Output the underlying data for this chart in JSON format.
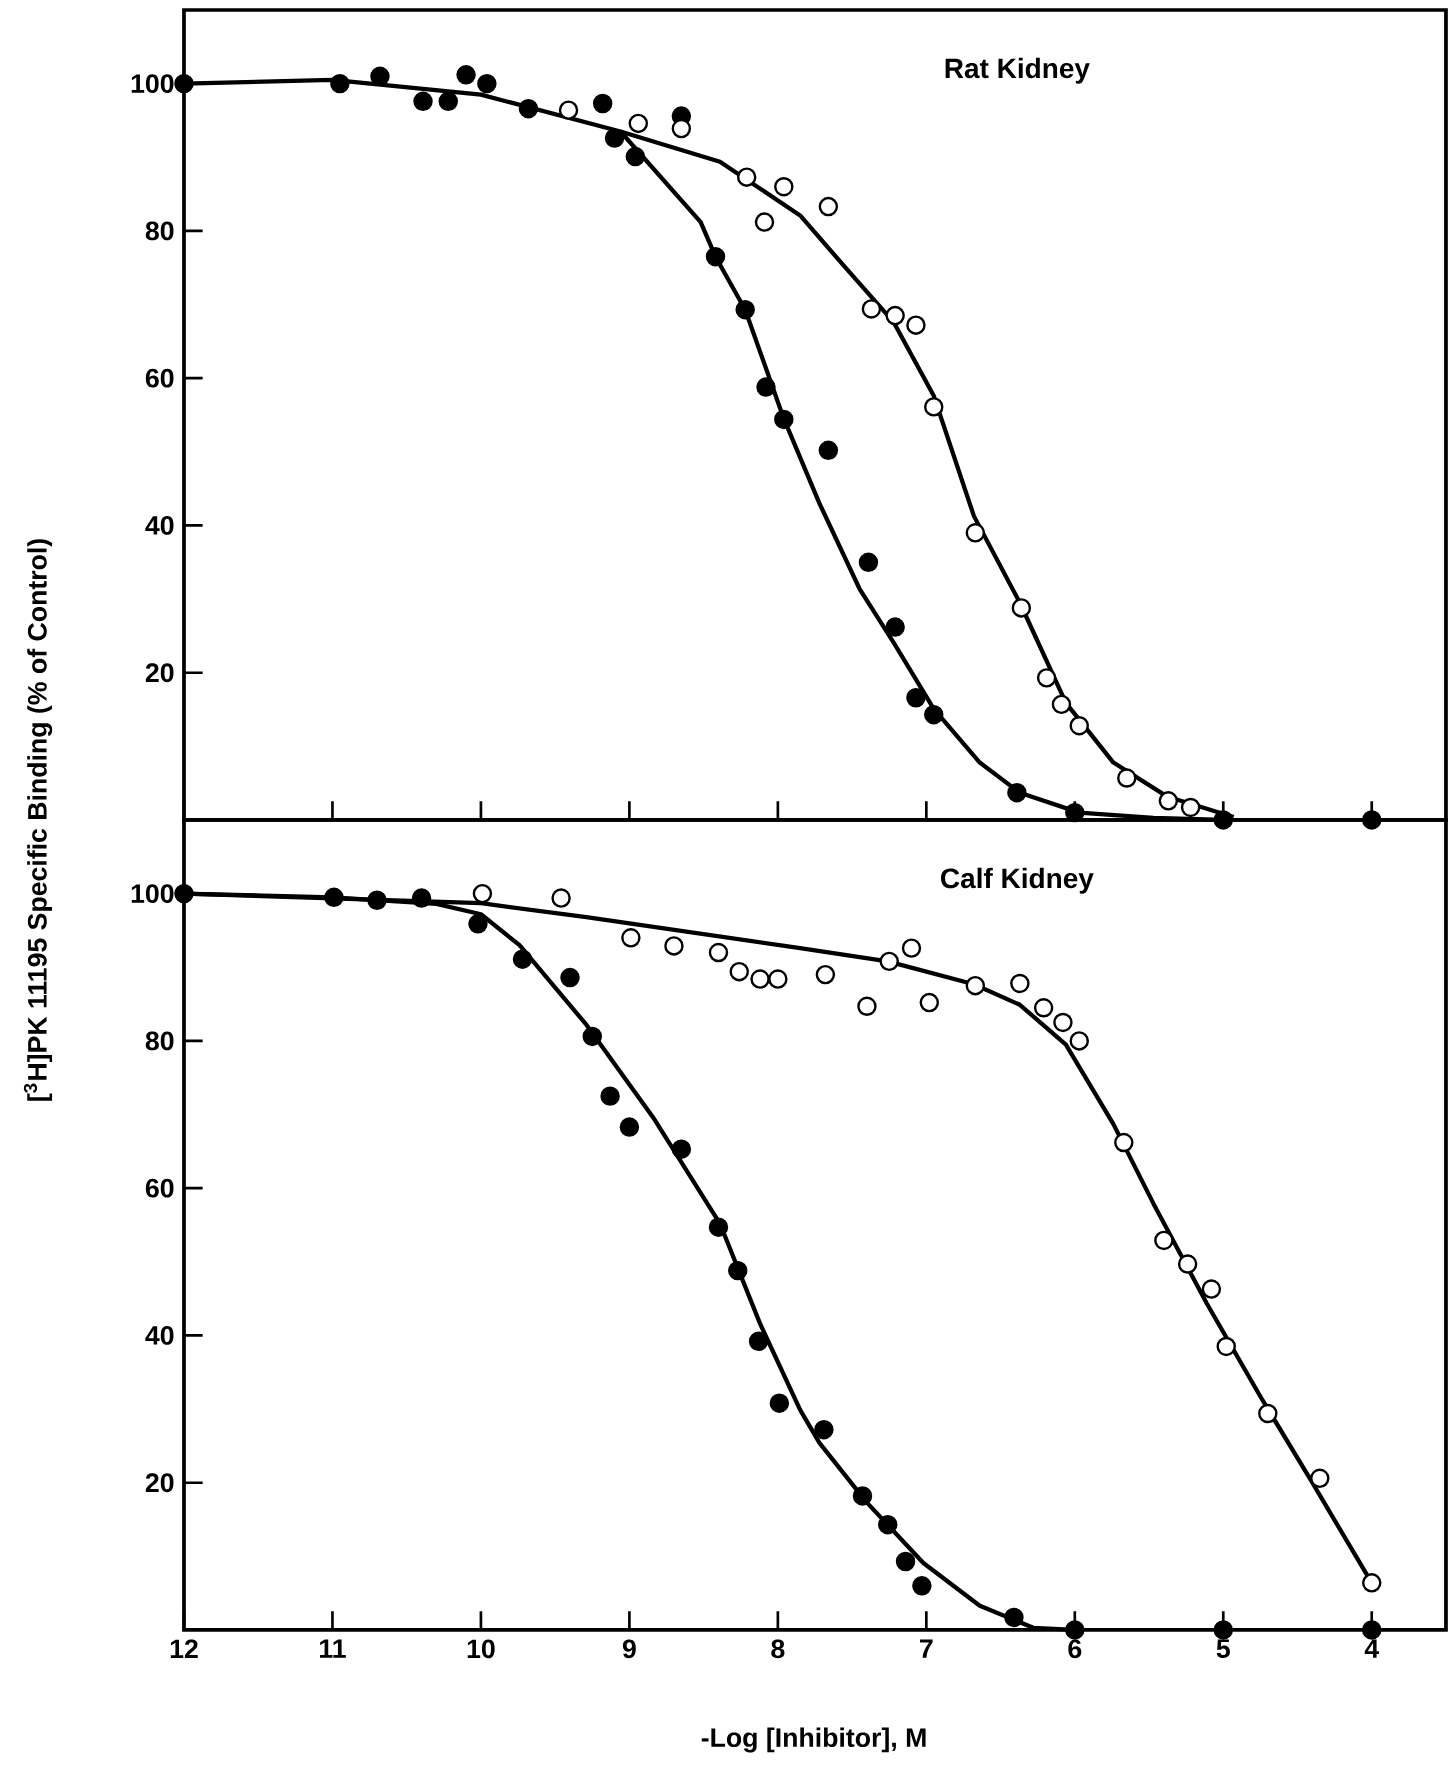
{
  "chart_data": [
    {
      "type": "scatter",
      "title": "Rat Kidney",
      "ylabel": "[$^{3}$H]PK 11195  Specific Binding (% of Control)",
      "tick_labels": "y",
      "xlim": [
        12,
        3.5
      ],
      "xticks": [
        {
          "value": 12,
          "label": null
        },
        {
          "value": 11,
          "label": null
        },
        {
          "value": 10,
          "label": null
        },
        {
          "value": 9,
          "label": null
        },
        {
          "value": 8,
          "label": null
        },
        {
          "value": 7,
          "label": null
        },
        {
          "value": 6,
          "label": null
        },
        {
          "value": 5,
          "label": null
        },
        {
          "value": 4,
          "label": null
        }
      ],
      "ylim": [
        0,
        110
      ],
      "yticks": [
        20,
        40,
        60,
        80,
        100
      ],
      "series": [
        {
          "color": "#000000",
          "marker": "circle",
          "x": [
            12,
            10.95,
            10.68,
            10.39,
            10.22,
            10.1,
            9.96,
            9.68,
            9.18,
            9.1,
            8.96,
            8.65,
            8.42,
            8.22,
            8.08,
            7.96,
            7.66,
            7.39,
            7.21,
            7.07,
            6.95,
            6.39,
            6,
            5,
            4
          ],
          "values": [
            100,
            100,
            101,
            97.6,
            97.6,
            101.2,
            100,
            96.6,
            97.3,
            92.6,
            90.1,
            95.6,
            76.5,
            69.3,
            58.8,
            54.4,
            50.2,
            35,
            26.2,
            16.6,
            14.3,
            3.7,
            1,
            0,
            0
          ]
        },
        {
          "color": "#ffffff",
          "marker": "circle",
          "x": [
            9.41,
            8.94,
            8.65,
            8.21,
            7.96,
            8.09,
            7.66,
            7.37,
            7.21,
            7.07,
            6.95,
            6.67,
            6.36,
            6.19,
            6.09,
            5.97,
            5.65,
            5.37,
            5.22
          ],
          "values": [
            96.4,
            94.6,
            93.9,
            87.3,
            86,
            81.2,
            83.3,
            69.4,
            68.5,
            67.2,
            56.1,
            39,
            28.8,
            19.3,
            15.7,
            12.8,
            5.7,
            2.6,
            1.7
          ]
        },
        {
          "type": "line",
          "color": "#000000",
          "marker": "none",
          "x": [
            12,
            11,
            10,
            9.06,
            8.52,
            8.42,
            8.22,
            7.96,
            7.72,
            7.45,
            7.22,
            6.95,
            6.64,
            6.37,
            5.97,
            5.47,
            5
          ],
          "values": [
            100,
            100.5,
            98.5,
            93.5,
            81.2,
            76.5,
            69.3,
            54.5,
            43,
            31.4,
            24.1,
            15.1,
            7.8,
            3.7,
            1,
            0.3,
            0
          ]
        },
        {
          "type": "line",
          "color": "#000000",
          "marker": "none",
          "x": [
            9.06,
            8.39,
            7.85,
            7.54,
            7.22,
            6.95,
            6.68,
            6.37,
            6.06,
            5.74,
            5.38,
            4.93
          ],
          "values": [
            93.5,
            89.4,
            82.1,
            74.9,
            67.6,
            57.6,
            41.3,
            29.5,
            15.9,
            7.8,
            3.2,
            0.4
          ]
        }
      ]
    },
    {
      "type": "scatter",
      "title": "Calf Kidney",
      "xlabel": "-Log [Inhibitor], M",
      "xlim": [
        12,
        3.5
      ],
      "xticks": [
        12,
        11,
        10,
        9,
        8,
        7,
        6,
        5,
        4
      ],
      "ylim": [
        0,
        110
      ],
      "yticks": [
        20,
        40,
        60,
        80,
        100
      ],
      "series": [
        {
          "color": "#000000",
          "marker": "circle",
          "x": [
            12,
            10.99,
            10.7,
            10.4,
            10.02,
            9.72,
            9.4,
            9.25,
            9.13,
            9,
            8.65,
            8.4,
            8.27,
            8.13,
            7.99,
            7.69,
            7.43,
            7.26,
            7.14,
            7.03,
            6.41,
            6,
            5,
            4
          ],
          "values": [
            100,
            99.5,
            99.1,
            99.4,
            95.9,
            91.1,
            88.6,
            80.6,
            72.5,
            68.3,
            65.3,
            54.7,
            48.8,
            39.2,
            30.8,
            27.2,
            18.2,
            14.3,
            9.3,
            6,
            1.7,
            0,
            0,
            0
          ]
        },
        {
          "color": "#ffffff",
          "marker": "circle",
          "x": [
            9.99,
            9.46,
            8.99,
            8.7,
            8.4,
            8.26,
            8.12,
            8,
            7.68,
            7.4,
            7.25,
            7.1,
            6.98,
            6.67,
            6.37,
            6.21,
            6.08,
            5.97,
            5.67,
            5.4,
            5.24,
            5.08,
            4.98,
            4.7,
            4.35,
            4
          ],
          "values": [
            100,
            99.4,
            94,
            92.9,
            92,
            89.4,
            88.4,
            88.4,
            89,
            84.7,
            90.8,
            92.6,
            85.2,
            87.5,
            87.8,
            84.5,
            82.5,
            80,
            66.2,
            52.9,
            49.7,
            46.3,
            38.5,
            29.4,
            20.6,
            6.4
          ]
        },
        {
          "type": "line",
          "color": "#000000",
          "marker": "none",
          "x": [
            12,
            11,
            10.3,
            10,
            9.74,
            9.29,
            8.84,
            8.39,
            8.12,
            7.85,
            7.72,
            7.4,
            7.02,
            6.64,
            6.28,
            6
          ],
          "values": [
            100,
            99.5,
            98.6,
            97.2,
            93,
            82.2,
            69.6,
            55.2,
            41.6,
            29.9,
            25.4,
            17.3,
            9.1,
            3.3,
            0.3,
            0
          ]
        },
        {
          "type": "line",
          "color": "#000000",
          "marker": "none",
          "x": [
            12,
            10,
            9.29,
            7.85,
            7.26,
            6.68,
            6.37,
            6.06,
            5.74,
            5.47,
            5.11,
            4.75,
            4.4,
            4
          ],
          "values": [
            100,
            98.7,
            96.8,
            92.6,
            90.8,
            87.7,
            84.9,
            79.5,
            68.7,
            57.9,
            44.3,
            31.7,
            20,
            6.4
          ]
        }
      ]
    }
  ]
}
